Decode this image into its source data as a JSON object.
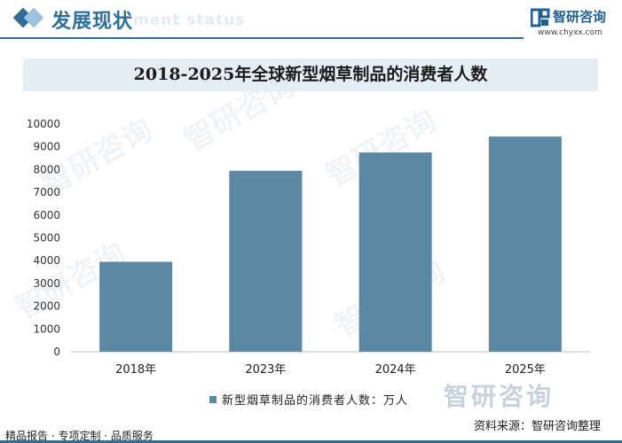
{
  "header": {
    "title": "发展现状",
    "subtitle_watermark": "ment status",
    "brand_name": "智研咨询",
    "brand_url": "www.chyxx.com"
  },
  "watermark_text": "智研咨询",
  "chart_data": {
    "type": "bar",
    "title": "2018-2025年全球新型烟草制品的消费者人数",
    "categories": [
      "2018年",
      "2023年",
      "2024年",
      "2025年"
    ],
    "series": [
      {
        "name": "新型烟草制品的消费者人数：万人",
        "values": [
          3950,
          7950,
          8750,
          9450
        ]
      }
    ],
    "ylim": [
      0,
      10000
    ],
    "yticks": [
      0,
      1000,
      2000,
      3000,
      4000,
      5000,
      6000,
      7000,
      8000,
      9000,
      10000
    ],
    "xlabel": "",
    "ylabel": "",
    "grid": false,
    "legend_position": "bottom-center",
    "bar_color": "#5b88a3"
  },
  "footer": {
    "source": "资料来源：智研咨询整理",
    "tagline": "精品报告 · 专项定制 · 品质服务"
  }
}
